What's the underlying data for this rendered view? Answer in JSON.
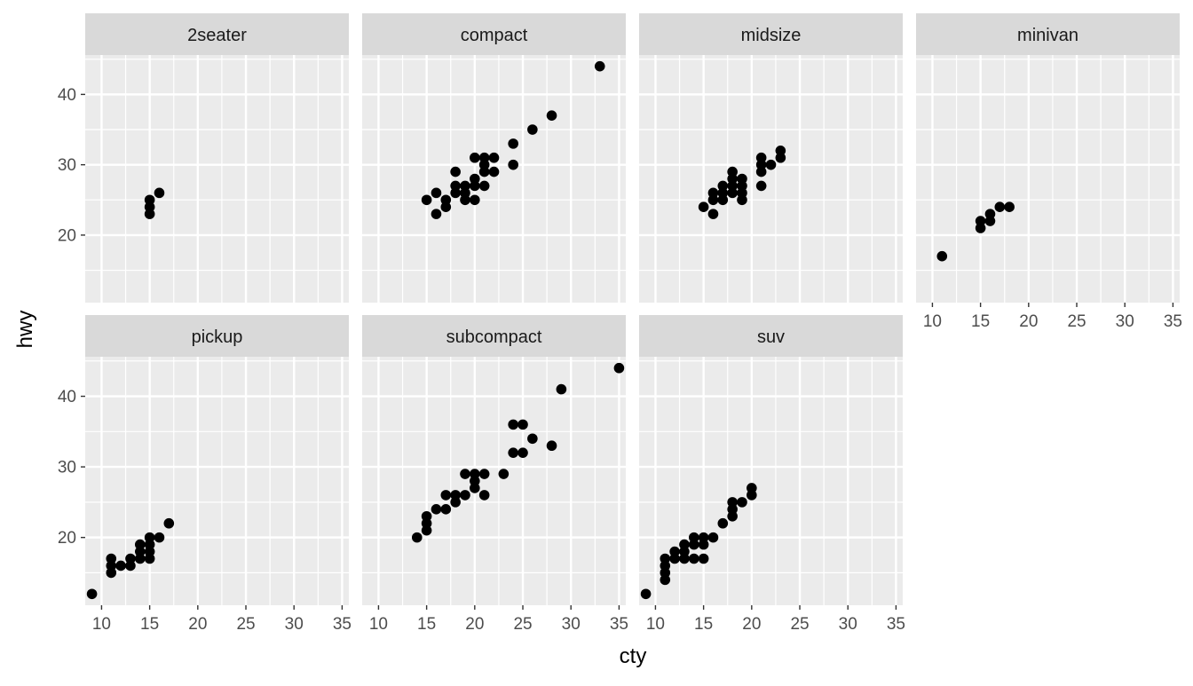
{
  "chart_data": {
    "type": "scatter",
    "facet_by": "class",
    "xlabel": "cty",
    "ylabel": "hwy",
    "xlim": [
      8.3,
      35.7
    ],
    "ylim": [
      10.4,
      45.6
    ],
    "x_ticks": [
      10,
      15,
      20,
      25,
      30,
      35
    ],
    "y_ticks": [
      20,
      30,
      40
    ],
    "grid": true,
    "legend": "none",
    "colors": {
      "panel_bg": "#EBEBEB",
      "grid_line": "#FFFFFF",
      "strip_bg": "#D9D9D9",
      "point": "#000000",
      "tick_text": "#4D4D4D",
      "axis_tick": "#333333"
    },
    "panels": [
      {
        "name": "2seater",
        "points": [
          [
            15,
            23
          ],
          [
            15,
            24
          ],
          [
            15,
            25
          ],
          [
            16,
            26
          ]
        ]
      },
      {
        "name": "compact",
        "points": [
          [
            15,
            25
          ],
          [
            16,
            23
          ],
          [
            16,
            26
          ],
          [
            17,
            24
          ],
          [
            17,
            25
          ],
          [
            18,
            26
          ],
          [
            18,
            27
          ],
          [
            18,
            29
          ],
          [
            19,
            25
          ],
          [
            19,
            26
          ],
          [
            19,
            27
          ],
          [
            20,
            25
          ],
          [
            20,
            27
          ],
          [
            20,
            28
          ],
          [
            20,
            31
          ],
          [
            21,
            27
          ],
          [
            21,
            29
          ],
          [
            21,
            30
          ],
          [
            21,
            31
          ],
          [
            22,
            29
          ],
          [
            22,
            31
          ],
          [
            24,
            30
          ],
          [
            24,
            33
          ],
          [
            26,
            35
          ],
          [
            28,
            37
          ],
          [
            33,
            44
          ]
        ]
      },
      {
        "name": "midsize",
        "points": [
          [
            15,
            24
          ],
          [
            16,
            23
          ],
          [
            16,
            25
          ],
          [
            16,
            26
          ],
          [
            17,
            25
          ],
          [
            17,
            26
          ],
          [
            17,
            27
          ],
          [
            18,
            26
          ],
          [
            18,
            27
          ],
          [
            18,
            28
          ],
          [
            18,
            29
          ],
          [
            19,
            25
          ],
          [
            19,
            26
          ],
          [
            19,
            27
          ],
          [
            19,
            28
          ],
          [
            21,
            27
          ],
          [
            21,
            29
          ],
          [
            21,
            30
          ],
          [
            21,
            31
          ],
          [
            22,
            30
          ],
          [
            23,
            31
          ],
          [
            23,
            32
          ]
        ]
      },
      {
        "name": "minivan",
        "points": [
          [
            11,
            17
          ],
          [
            15,
            21
          ],
          [
            15,
            22
          ],
          [
            16,
            22
          ],
          [
            16,
            23
          ],
          [
            17,
            24
          ],
          [
            18,
            24
          ]
        ]
      },
      {
        "name": "pickup",
        "points": [
          [
            9,
            12
          ],
          [
            11,
            15
          ],
          [
            11,
            16
          ],
          [
            11,
            17
          ],
          [
            12,
            16
          ],
          [
            13,
            16
          ],
          [
            13,
            17
          ],
          [
            14,
            17
          ],
          [
            14,
            18
          ],
          [
            14,
            19
          ],
          [
            15,
            17
          ],
          [
            15,
            18
          ],
          [
            15,
            19
          ],
          [
            15,
            20
          ],
          [
            16,
            20
          ],
          [
            17,
            22
          ]
        ]
      },
      {
        "name": "subcompact",
        "points": [
          [
            14,
            20
          ],
          [
            15,
            21
          ],
          [
            15,
            22
          ],
          [
            15,
            23
          ],
          [
            16,
            24
          ],
          [
            17,
            24
          ],
          [
            17,
            26
          ],
          [
            18,
            25
          ],
          [
            18,
            26
          ],
          [
            19,
            26
          ],
          [
            19,
            29
          ],
          [
            20,
            27
          ],
          [
            20,
            28
          ],
          [
            20,
            29
          ],
          [
            21,
            26
          ],
          [
            21,
            29
          ],
          [
            23,
            29
          ],
          [
            24,
            32
          ],
          [
            24,
            36
          ],
          [
            25,
            32
          ],
          [
            25,
            36
          ],
          [
            26,
            34
          ],
          [
            28,
            33
          ],
          [
            29,
            41
          ],
          [
            35,
            44
          ]
        ]
      },
      {
        "name": "suv",
        "points": [
          [
            9,
            12
          ],
          [
            11,
            14
          ],
          [
            11,
            15
          ],
          [
            11,
            16
          ],
          [
            11,
            17
          ],
          [
            12,
            17
          ],
          [
            12,
            18
          ],
          [
            13,
            17
          ],
          [
            13,
            18
          ],
          [
            13,
            19
          ],
          [
            14,
            17
          ],
          [
            14,
            19
          ],
          [
            14,
            20
          ],
          [
            15,
            17
          ],
          [
            15,
            19
          ],
          [
            15,
            20
          ],
          [
            16,
            20
          ],
          [
            17,
            22
          ],
          [
            18,
            23
          ],
          [
            18,
            24
          ],
          [
            18,
            25
          ],
          [
            19,
            25
          ],
          [
            20,
            26
          ],
          [
            20,
            27
          ]
        ]
      }
    ]
  }
}
